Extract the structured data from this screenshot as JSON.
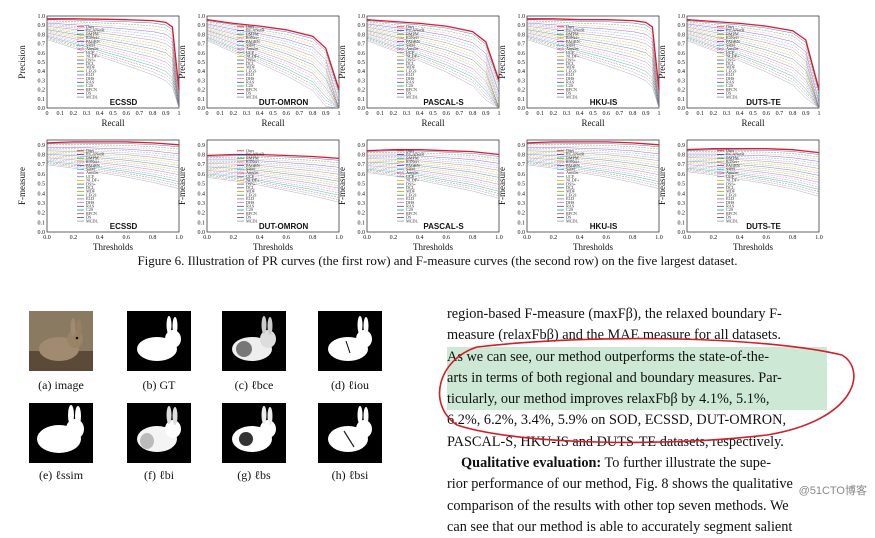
{
  "figure": {
    "caption": "Figure 6. Illustration of PR curves (the first row) and F-measure curves (the second row) on the five largest dataset.",
    "pr_xlabel": "Recall",
    "pr_ylabel": "Precision",
    "f_xlabel": "Thresholds",
    "f_ylabel": "F-measure",
    "pr_xticks": [
      "0",
      "0.1",
      "0.2",
      "0.3",
      "0.4",
      "0.5",
      "0.6",
      "0.7",
      "0.8",
      "0.9",
      "1"
    ],
    "pr_yticks": [
      "0.0",
      "0.1",
      "0.2",
      "0.3",
      "0.4",
      "0.5",
      "0.6",
      "0.7",
      "0.8",
      "0.9",
      "1.0"
    ],
    "f_xticks": [
      "0.0",
      "0.2",
      "0.4",
      "0.6",
      "0.8",
      "1.0"
    ],
    "f_yticks": [
      "0.0",
      "0.1",
      "0.2",
      "0.3",
      "0.4",
      "0.5",
      "0.6",
      "0.7",
      "0.8",
      "0.9"
    ],
    "datasets": [
      "ECSSD",
      "DUT-OMRON",
      "PASCAL-S",
      "HKU-IS",
      "DUTS-TE"
    ],
    "legend": [
      "Ours",
      "PiCANetR",
      "BMPM",
      "R3Net+",
      "PAGRN",
      "SRM",
      "Amulet",
      "UCF",
      "NLDF+",
      "DSS+",
      "DCL",
      "MDF",
      "LEGS",
      "ELD",
      "DHS",
      "RAS",
      "C2S",
      "RFCN",
      "DS",
      "MCDL"
    ],
    "colors": {
      "ours": "#e0192c",
      "others": [
        "#1f3fbf",
        "#2a9d3a",
        "#e07b1a",
        "#8a2be2",
        "#17becf",
        "#d62790",
        "#7f7f7f",
        "#bcbd22",
        "#8c564b",
        "#1f77b4",
        "#ff7f0e",
        "#2ca02c",
        "#9467bd",
        "#e377c2",
        "#555555",
        "#00aaaa",
        "#aa5500",
        "#4444cc",
        "#999999"
      ]
    }
  },
  "chart_data": [
    {
      "type": "line",
      "title": "ECSSD",
      "xlabel": "Recall",
      "ylabel": "Precision",
      "xlim": [
        0,
        1
      ],
      "ylim": [
        0,
        1
      ],
      "series": [
        {
          "name": "Ours",
          "x": [
            0,
            0.2,
            0.4,
            0.6,
            0.8,
            0.9,
            0.95,
            1.0
          ],
          "y": [
            0.97,
            0.97,
            0.965,
            0.96,
            0.95,
            0.93,
            0.88,
            0.2
          ]
        }
      ]
    },
    {
      "type": "line",
      "title": "DUT-OMRON",
      "xlabel": "Recall",
      "ylabel": "Precision",
      "xlim": [
        0,
        1
      ],
      "ylim": [
        0,
        1
      ],
      "series": [
        {
          "name": "Ours",
          "x": [
            0,
            0.2,
            0.4,
            0.6,
            0.8,
            0.9,
            1.0
          ],
          "y": [
            0.96,
            0.92,
            0.89,
            0.85,
            0.78,
            0.65,
            0.2
          ]
        }
      ]
    },
    {
      "type": "line",
      "title": "PASCAL-S",
      "xlabel": "Recall",
      "ylabel": "Precision",
      "xlim": [
        0,
        1
      ],
      "ylim": [
        0,
        1
      ],
      "series": [
        {
          "name": "Ours",
          "x": [
            0,
            0.2,
            0.4,
            0.6,
            0.8,
            0.9,
            1.0
          ],
          "y": [
            0.96,
            0.94,
            0.92,
            0.89,
            0.83,
            0.72,
            0.3
          ]
        }
      ]
    },
    {
      "type": "line",
      "title": "HKU-IS",
      "xlabel": "Recall",
      "ylabel": "Precision",
      "xlim": [
        0,
        1
      ],
      "ylim": [
        0,
        1
      ],
      "series": [
        {
          "name": "Ours",
          "x": [
            0,
            0.2,
            0.4,
            0.6,
            0.8,
            0.9,
            0.95,
            1.0
          ],
          "y": [
            0.97,
            0.97,
            0.96,
            0.96,
            0.95,
            0.93,
            0.88,
            0.2
          ]
        }
      ]
    },
    {
      "type": "line",
      "title": "DUTS-TE",
      "xlabel": "Recall",
      "ylabel": "Precision",
      "xlim": [
        0,
        1
      ],
      "ylim": [
        0,
        1
      ],
      "series": [
        {
          "name": "Ours",
          "x": [
            0,
            0.2,
            0.4,
            0.6,
            0.8,
            0.9,
            1.0
          ],
          "y": [
            0.96,
            0.94,
            0.92,
            0.89,
            0.84,
            0.74,
            0.2
          ]
        }
      ]
    },
    {
      "type": "line",
      "title": "ECSSD",
      "xlabel": "Thresholds",
      "ylabel": "F-measure",
      "xlim": [
        0,
        1
      ],
      "ylim": [
        0,
        0.95
      ],
      "series": [
        {
          "name": "Ours",
          "x": [
            0,
            0.2,
            0.4,
            0.6,
            0.8,
            1.0
          ],
          "y": [
            0.92,
            0.93,
            0.93,
            0.93,
            0.92,
            0.9
          ]
        }
      ]
    },
    {
      "type": "line",
      "title": "DUT-OMRON",
      "xlabel": "Thresholds",
      "ylabel": "F-measure",
      "xlim": [
        0,
        1
      ],
      "ylim": [
        0,
        0.95
      ],
      "series": [
        {
          "name": "Ours",
          "x": [
            0,
            0.2,
            0.4,
            0.6,
            0.8,
            1.0
          ],
          "y": [
            0.79,
            0.8,
            0.8,
            0.79,
            0.78,
            0.76
          ]
        }
      ]
    },
    {
      "type": "line",
      "title": "PASCAL-S",
      "xlabel": "Thresholds",
      "ylabel": "F-measure",
      "xlim": [
        0,
        1
      ],
      "ylim": [
        0,
        0.95
      ],
      "series": [
        {
          "name": "Ours",
          "x": [
            0,
            0.2,
            0.4,
            0.6,
            0.8,
            1.0
          ],
          "y": [
            0.84,
            0.85,
            0.85,
            0.84,
            0.83,
            0.8
          ]
        }
      ]
    },
    {
      "type": "line",
      "title": "HKU-IS",
      "xlabel": "Thresholds",
      "ylabel": "F-measure",
      "xlim": [
        0,
        1
      ],
      "ylim": [
        0,
        0.95
      ],
      "series": [
        {
          "name": "Ours",
          "x": [
            0,
            0.2,
            0.4,
            0.6,
            0.8,
            1.0
          ],
          "y": [
            0.92,
            0.93,
            0.93,
            0.93,
            0.92,
            0.9
          ]
        }
      ]
    },
    {
      "type": "line",
      "title": "DUTS-TE",
      "xlabel": "Thresholds",
      "ylabel": "F-measure",
      "xlim": [
        0,
        1
      ],
      "ylim": [
        0,
        0.95
      ],
      "series": [
        {
          "name": "Ours",
          "x": [
            0,
            0.2,
            0.4,
            0.6,
            0.8,
            1.0
          ],
          "y": [
            0.85,
            0.86,
            0.86,
            0.86,
            0.85,
            0.82
          ]
        }
      ]
    }
  ],
  "thumbs": [
    {
      "label": "(a) image"
    },
    {
      "label": "(b) GT"
    },
    {
      "label": "(c) ℓbce"
    },
    {
      "label": "(d) ℓiou"
    },
    {
      "label": "(e) ℓssim"
    },
    {
      "label": "(f) ℓbi"
    },
    {
      "label": "(g) ℓbs"
    },
    {
      "label": "(h) ℓbsi"
    }
  ],
  "text": {
    "line1": "region-based F-measure (maxFβ), the relaxed boundary F-",
    "line2": "measure (relaxFbβ) and the MAE measure for all datasets.",
    "hl1": "As we can see, our method outperforms the state-of-the-",
    "hl2": "arts in terms of both regional and boundary measures. Par-",
    "hl3": "ticularly, our method improves relaxFbβ by 4.1%, 5.1%,",
    "hl4": "6.2%, 6.2%, 3.4%, 5.9% on SOD, ECSSD, DUT-OMRON,",
    "line7": "PASCAL-S, HKU-IS and DUTS-TE datasets, respectively.",
    "qual_head": "Qualitative evaluation:",
    "qual_rest": " To further illustrate the supe-",
    "line9": "rior performance of our method, Fig. 8 shows the qualitative",
    "line10": "comparison of the results with other top seven methods. We",
    "line11": "can see that our method is able to accurately segment salient"
  },
  "watermark": "@51CTO博客"
}
